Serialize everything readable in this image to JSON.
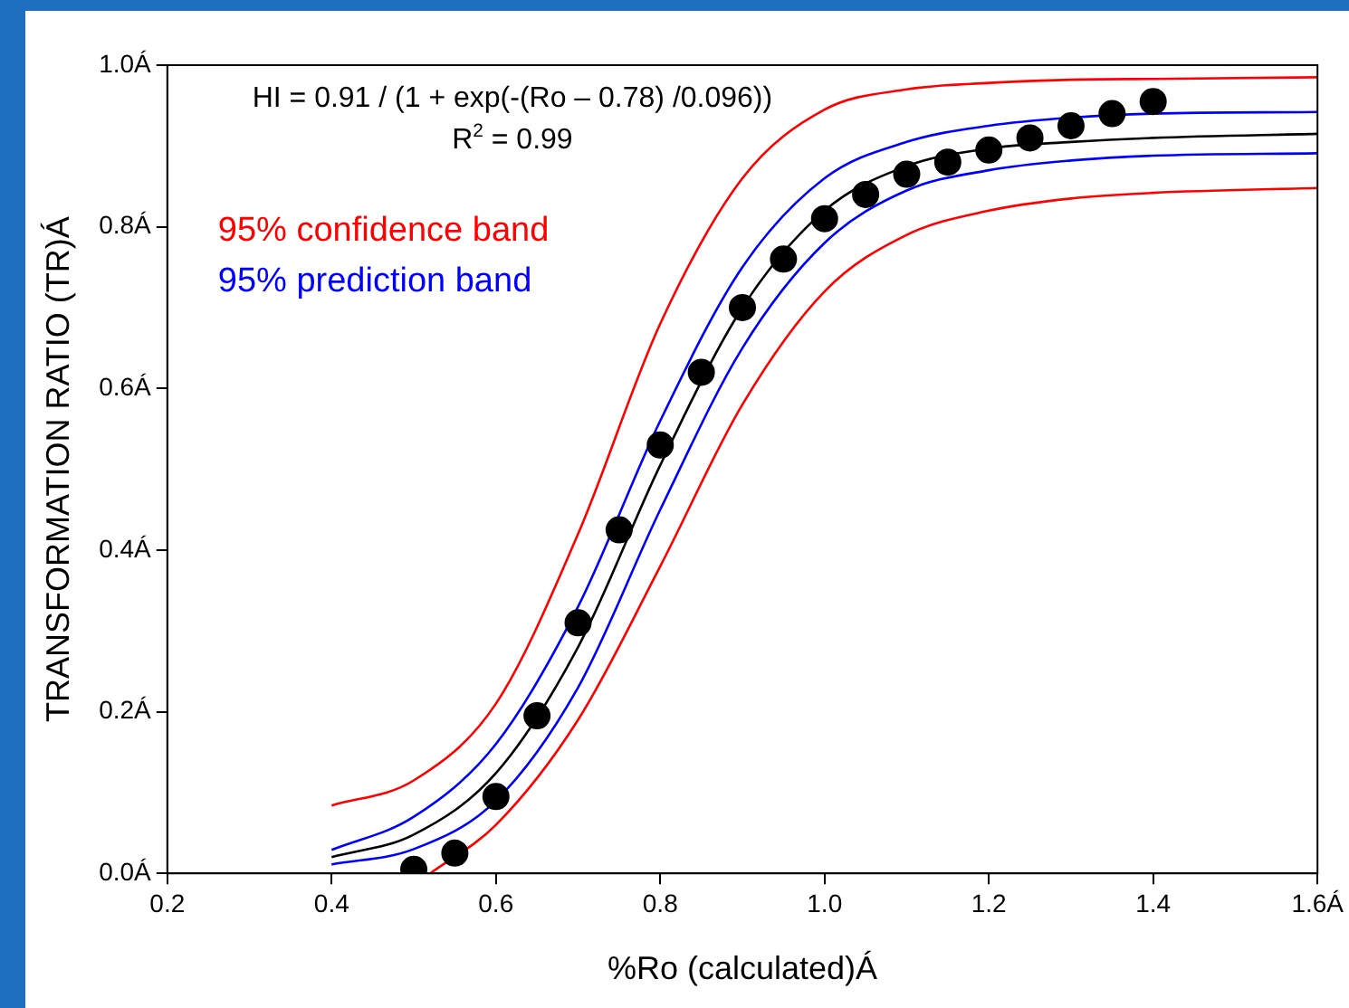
{
  "chart_data": {
    "type": "scatter",
    "xlabel": "%Ro (calculated)Á",
    "ylabel": "TRANSFORMATION RATIO (TR)Á",
    "annotations": [
      "HI = 0.91 / (1 + exp(-(Ro – 0.78) /0.096))",
      "R$^{2}$ = 0.99"
    ],
    "x": [
      0.5,
      0.55,
      0.6,
      0.65,
      0.7,
      0.75,
      0.8,
      0.85,
      0.9,
      0.95,
      1.0,
      1.05,
      1.1,
      1.15,
      1.2,
      1.25,
      1.3,
      1.35,
      1.4
    ],
    "series": [
      {
        "color": "#000000",
        "marker": "circle",
        "values": [
          0.005,
          0.025,
          0.095,
          0.195,
          0.31,
          0.425,
          0.53,
          0.62,
          0.7,
          0.76,
          0.81,
          0.84,
          0.865,
          0.88,
          0.895,
          0.91,
          0.925,
          0.94,
          0.955
        ]
      },
      {
        "type": "line",
        "color": "#000000",
        "x": [
          0.4,
          0.5,
          0.6,
          0.7,
          0.8,
          0.9,
          1.0,
          1.1,
          1.2,
          1.3,
          1.4,
          1.6
        ],
        "values": [
          0.02,
          0.048,
          0.124,
          0.28,
          0.505,
          0.7,
          0.82,
          0.875,
          0.897,
          0.905,
          0.91,
          0.915
        ]
      },
      {
        "type": "line",
        "name": "95% confidence band",
        "color": "#ff0000",
        "x": [
          0.4,
          0.5,
          0.6,
          0.7,
          0.8,
          0.9,
          1.0,
          1.1,
          1.2,
          1.3,
          1.4,
          1.6
        ],
        "values": [
          0.084,
          0.115,
          0.21,
          0.42,
          0.68,
          0.86,
          0.945,
          0.97,
          0.978,
          0.982,
          0.983,
          0.985
        ]
      },
      {
        "type": "line",
        "color": "#ff0000",
        "x": [
          0.52,
          0.6,
          0.7,
          0.8,
          0.9,
          1.0,
          1.1,
          1.2,
          1.3,
          1.4,
          1.6
        ],
        "values": [
          0.0,
          0.06,
          0.19,
          0.38,
          0.58,
          0.72,
          0.79,
          0.82,
          0.835,
          0.842,
          0.848
        ]
      },
      {
        "type": "line",
        "name": "95% prediction band",
        "color": "#0000ff",
        "x": [
          0.4,
          0.5,
          0.6,
          0.7,
          0.8,
          0.9,
          1.0,
          1.1,
          1.2,
          1.3,
          1.4,
          1.6
        ],
        "values": [
          0.029,
          0.07,
          0.16,
          0.33,
          0.56,
          0.75,
          0.86,
          0.905,
          0.925,
          0.935,
          0.94,
          0.942
        ]
      },
      {
        "type": "line",
        "color": "#0000ff",
        "x": [
          0.4,
          0.5,
          0.6,
          0.7,
          0.8,
          0.9,
          1.0,
          1.1,
          1.2,
          1.3,
          1.4,
          1.6
        ],
        "values": [
          0.011,
          0.03,
          0.09,
          0.23,
          0.45,
          0.65,
          0.78,
          0.845,
          0.87,
          0.882,
          0.888,
          0.891
        ]
      }
    ],
    "xlim": [
      0.2,
      1.6
    ],
    "xticks": [
      0.2,
      0.4,
      0.6,
      0.8,
      {
        "value": 1.0,
        "label": "1.0"
      },
      1.2,
      1.4,
      {
        "value": 1.6,
        "label": "1.6Á"
      }
    ],
    "ylim": [
      0,
      1.0
    ],
    "yticks": [
      {
        "value": 0,
        "label": "0.0Á"
      },
      {
        "value": 0.2,
        "label": "0.2Á"
      },
      {
        "value": 0.4,
        "label": "0.4Á"
      },
      {
        "value": 0.6,
        "label": "0.6Á"
      },
      {
        "value": 0.8,
        "label": "0.8Á"
      },
      {
        "value": 1.0,
        "label": "1.0Á"
      }
    ],
    "grid": false,
    "legend": "top left",
    "line_style": "solid"
  }
}
